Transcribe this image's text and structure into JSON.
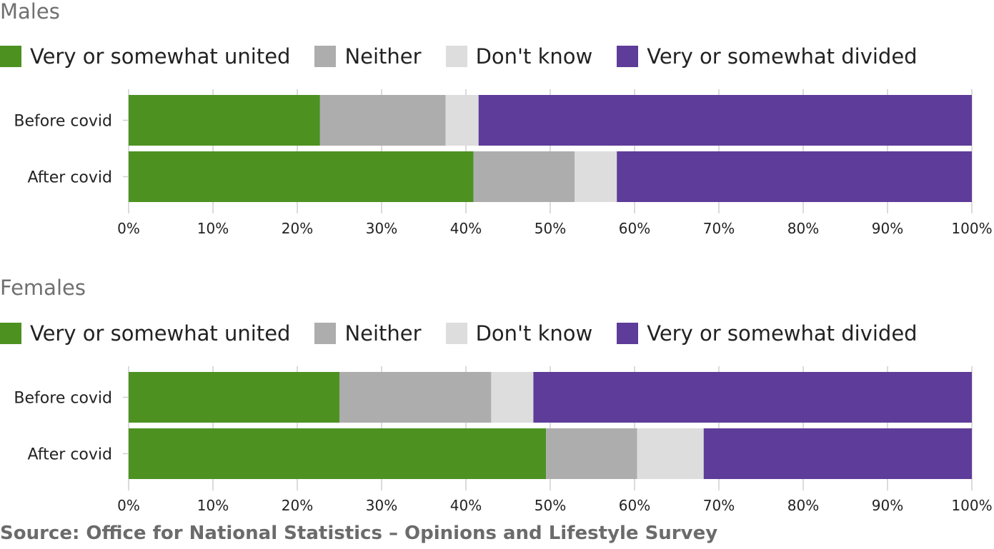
{
  "source_text": "Source: Office for National Statistics – Opinions and Lifestyle Survey",
  "chart_data": [
    {
      "type": "bar",
      "orientation": "horizontal",
      "stacked": true,
      "title": "Males",
      "categories": [
        "Before covid",
        "After covid"
      ],
      "xlim": [
        0,
        100
      ],
      "x_ticks": [
        "0%",
        "10%",
        "20%",
        "30%",
        "40%",
        "50%",
        "60%",
        "70%",
        "80%",
        "90%",
        "100%"
      ],
      "grid": "vertical",
      "legend_position": "top-left",
      "series": [
        {
          "name": "Very or somewhat united",
          "color": "#4d9221",
          "values": [
            22.7,
            40.9
          ]
        },
        {
          "name": "Neither",
          "color": "#adadad",
          "values": [
            14.9,
            12.0
          ]
        },
        {
          "name": "Don't know",
          "color": "#dddddd",
          "values": [
            3.9,
            5.0
          ]
        },
        {
          "name": "Very or somewhat divided",
          "color": "#5e3c99",
          "values": [
            58.5,
            42.1
          ]
        }
      ]
    },
    {
      "type": "bar",
      "orientation": "horizontal",
      "stacked": true,
      "title": "Females",
      "categories": [
        "Before covid",
        "After covid"
      ],
      "xlim": [
        0,
        100
      ],
      "x_ticks": [
        "0%",
        "10%",
        "20%",
        "30%",
        "40%",
        "50%",
        "60%",
        "70%",
        "80%",
        "90%",
        "100%"
      ],
      "grid": "vertical",
      "legend_position": "top-left",
      "series": [
        {
          "name": "Very or somewhat united",
          "color": "#4d9221",
          "values": [
            25.0,
            49.5
          ]
        },
        {
          "name": "Neither",
          "color": "#adadad",
          "values": [
            18.0,
            10.8
          ]
        },
        {
          "name": "Don't know",
          "color": "#dddddd",
          "values": [
            5.0,
            7.9
          ]
        },
        {
          "name": "Very or somewhat divided",
          "color": "#5e3c99",
          "values": [
            52.0,
            31.8
          ]
        }
      ]
    }
  ]
}
